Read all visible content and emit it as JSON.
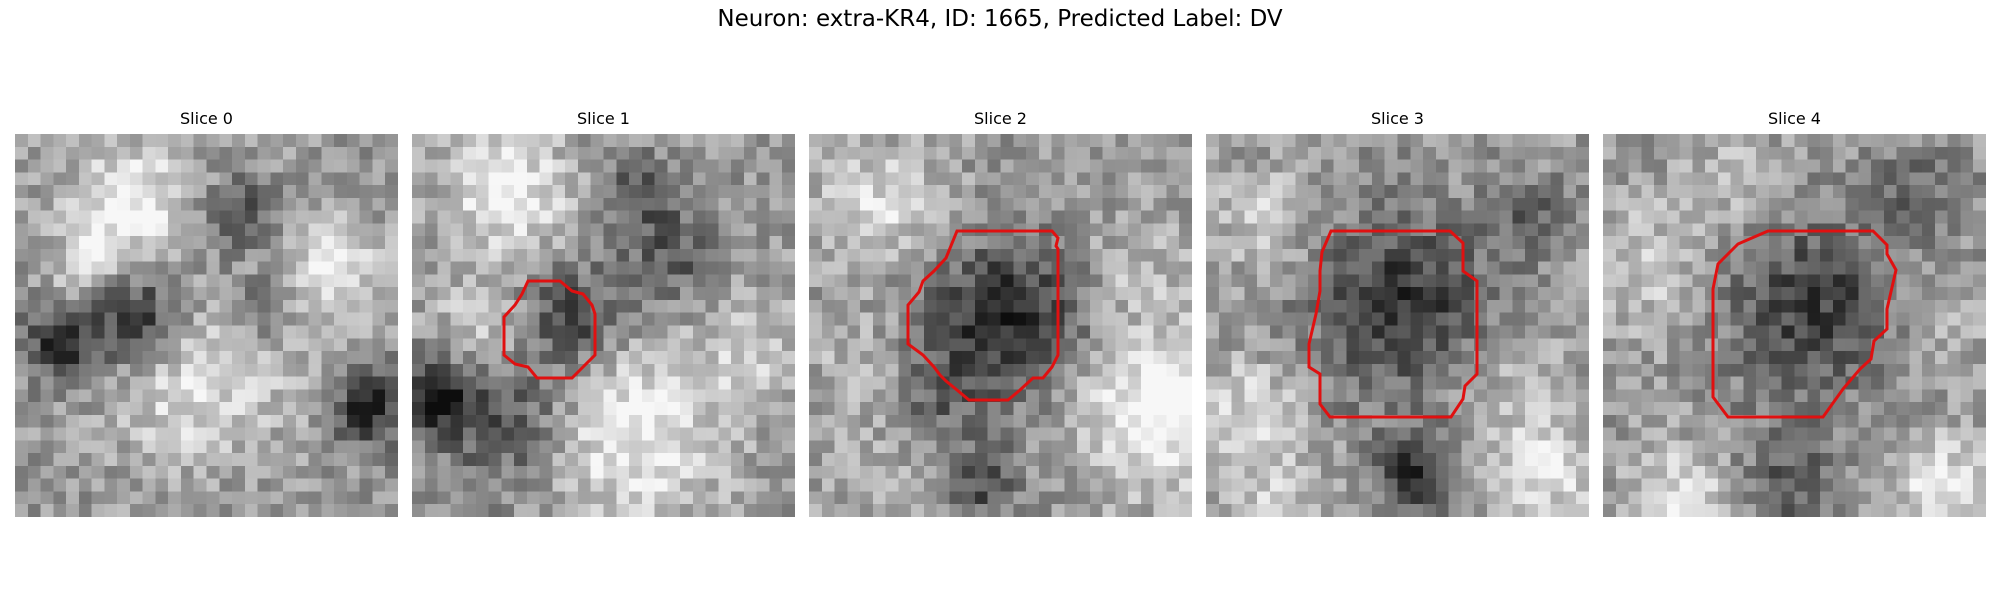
{
  "figure": {
    "title": "Neuron: extra-KR4, ID: 1665, Predicted Label: DV",
    "outline_color": "#e01010",
    "colormap": "gray"
  },
  "slices": [
    {
      "title": "Slice 0",
      "has_outline": false
    },
    {
      "title": "Slice 1",
      "has_outline": true
    },
    {
      "title": "Slice 2",
      "has_outline": true
    },
    {
      "title": "Slice 3",
      "has_outline": true
    },
    {
      "title": "Slice 4",
      "has_outline": true
    }
  ]
}
